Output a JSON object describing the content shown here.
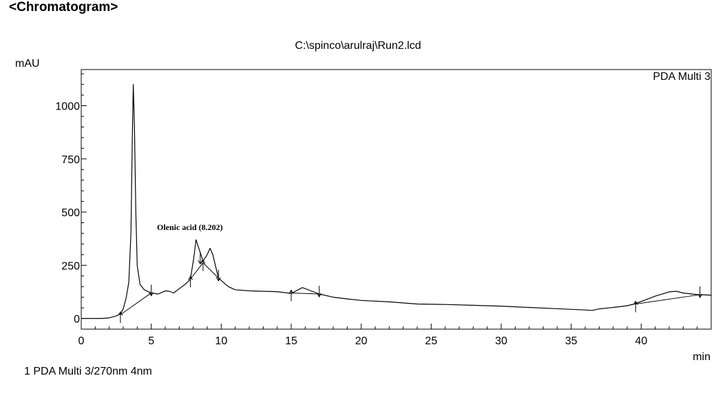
{
  "header": {
    "title": "<Chromatogram>",
    "file_path": "C:\\spinco\\arulraj\\Run2.lcd"
  },
  "footer": {
    "legend_text": "1  PDA Multi 3/270nm 4nm"
  },
  "chart_data": {
    "type": "line",
    "xlabel": "min",
    "ylabel": "mAU",
    "xlim": [
      0,
      45
    ],
    "ylim": [
      -50,
      1170
    ],
    "x_ticks": [
      0,
      5,
      10,
      15,
      20,
      25,
      30,
      35,
      40
    ],
    "y_ticks": [
      0,
      250,
      500,
      750,
      1000
    ],
    "grid": false,
    "legend": "top-right",
    "series": [
      {
        "name": "PDA Multi 3",
        "color": "#000000",
        "points": [
          [
            0,
            0
          ],
          [
            1.5,
            0
          ],
          [
            2.0,
            3
          ],
          [
            2.5,
            12
          ],
          [
            2.8,
            22
          ],
          [
            3.0,
            45
          ],
          [
            3.2,
            95
          ],
          [
            3.4,
            170
          ],
          [
            3.55,
            400
          ],
          [
            3.65,
            850
          ],
          [
            3.72,
            1100
          ],
          [
            3.8,
            900
          ],
          [
            3.9,
            500
          ],
          [
            4.0,
            250
          ],
          [
            4.2,
            160
          ],
          [
            4.5,
            135
          ],
          [
            5.0,
            120
          ],
          [
            5.5,
            115
          ],
          [
            6.0,
            130
          ],
          [
            6.3,
            128
          ],
          [
            6.6,
            120
          ],
          [
            7.0,
            140
          ],
          [
            7.5,
            165
          ],
          [
            7.8,
            185
          ],
          [
            8.05,
            290
          ],
          [
            8.2,
            370
          ],
          [
            8.4,
            330
          ],
          [
            8.7,
            270
          ],
          [
            9.0,
            300
          ],
          [
            9.2,
            330
          ],
          [
            9.4,
            300
          ],
          [
            9.8,
            190
          ],
          [
            10.5,
            150
          ],
          [
            11,
            135
          ],
          [
            12,
            130
          ],
          [
            13,
            128
          ],
          [
            14,
            126
          ],
          [
            15,
            118
          ],
          [
            15.8,
            145
          ],
          [
            16.5,
            128
          ],
          [
            17,
            115
          ],
          [
            18,
            100
          ],
          [
            19,
            92
          ],
          [
            20,
            85
          ],
          [
            22,
            78
          ],
          [
            24,
            68
          ],
          [
            26,
            66
          ],
          [
            28,
            62
          ],
          [
            30,
            58
          ],
          [
            32,
            52
          ],
          [
            34,
            46
          ],
          [
            36,
            40
          ],
          [
            36.5,
            38
          ],
          [
            37,
            45
          ],
          [
            38,
            52
          ],
          [
            39,
            60
          ],
          [
            39.5,
            68
          ],
          [
            40,
            80
          ],
          [
            41,
            105
          ],
          [
            42,
            125
          ],
          [
            42.5,
            128
          ],
          [
            43,
            120
          ],
          [
            44,
            112
          ],
          [
            45,
            110
          ]
        ]
      }
    ],
    "baselines": [
      [
        [
          2.8,
          18
        ],
        [
          5.0,
          120
        ]
      ],
      [
        [
          7.8,
          185
        ],
        [
          8.7,
          262
        ]
      ],
      [
        [
          8.7,
          262
        ],
        [
          9.8,
          190
        ]
      ],
      [
        [
          15.0,
          120
        ],
        [
          17.0,
          115
        ]
      ],
      [
        [
          39.6,
          68
        ],
        [
          44.2,
          112
        ]
      ]
    ],
    "markers": [
      {
        "x": 2.8,
        "y": 18,
        "dir": "up"
      },
      {
        "x": 5.0,
        "y": 120,
        "dir": "down"
      },
      {
        "x": 7.8,
        "y": 185,
        "dir": "up"
      },
      {
        "x": 8.5,
        "y": 270,
        "dir": "down"
      },
      {
        "x": 8.7,
        "y": 262,
        "dir": "up"
      },
      {
        "x": 9.8,
        "y": 190,
        "dir": "down"
      },
      {
        "x": 15.0,
        "y": 120,
        "dir": "up"
      },
      {
        "x": 17.0,
        "y": 115,
        "dir": "down"
      },
      {
        "x": 39.6,
        "y": 68,
        "dir": "up"
      },
      {
        "x": 44.2,
        "y": 112,
        "dir": "down"
      }
    ],
    "annotations": [
      {
        "text": "Olenic acid (8.202)",
        "x": 8.202,
        "y": 370
      }
    ]
  }
}
